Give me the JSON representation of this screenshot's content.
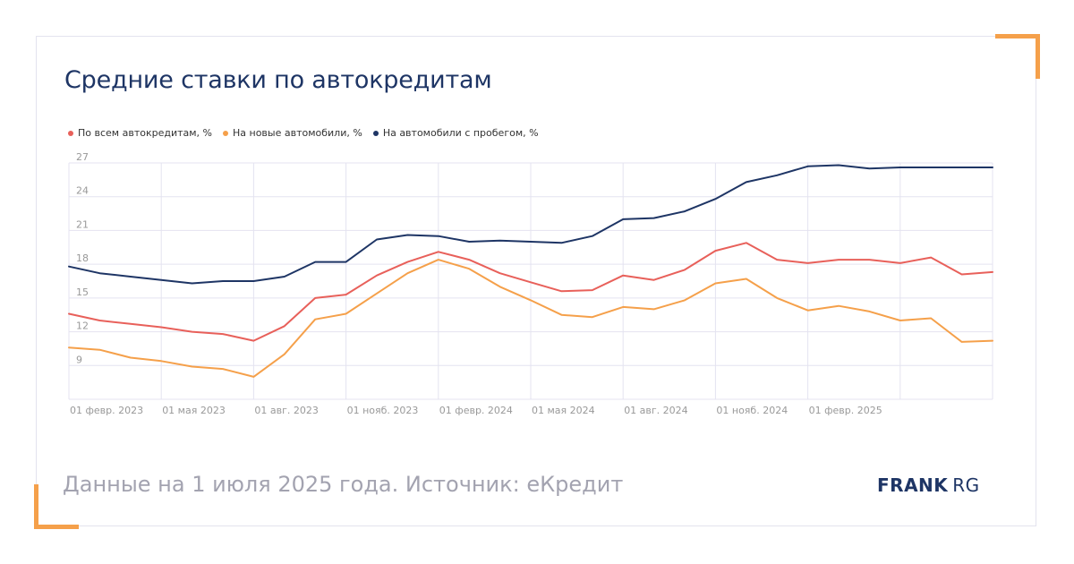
{
  "header": {
    "title": "Средние ставки по автокредитам"
  },
  "footer": {
    "note": "Данные на 1 июля 2025 года. Источник: еКредит",
    "logo_main": "FRANK",
    "logo_rg": "RG"
  },
  "colors": {
    "accent": "#f5a04a",
    "title": "#1e3565",
    "grid": "#e4e3f0",
    "tick": "#999999"
  },
  "chart_data": {
    "type": "line",
    "title": "Средние ставки по автокредитам",
    "ylim": [
      6,
      27
    ],
    "yticks": [
      9,
      12,
      15,
      18,
      21,
      24,
      27
    ],
    "grid": true,
    "legend_position": "top-left",
    "x_tick_labels": [
      "01 февр. 2023",
      "01 мая 2023",
      "01 авг. 2023",
      "01 нояб. 2023",
      "01 февр. 2024",
      "01 мая 2024",
      "01 авг. 2024",
      "01 нояб. 2024",
      "01 февр. 2025"
    ],
    "x": [
      "2023-01",
      "2023-02",
      "2023-03",
      "2023-04",
      "2023-05",
      "2023-06",
      "2023-07",
      "2023-08",
      "2023-09",
      "2023-10",
      "2023-11",
      "2023-12",
      "2024-01",
      "2024-02",
      "2024-03",
      "2024-04",
      "2024-05",
      "2024-06",
      "2024-07",
      "2024-08",
      "2024-09",
      "2024-10",
      "2024-11",
      "2024-12",
      "2025-01",
      "2025-02",
      "2025-03",
      "2025-04",
      "2025-05",
      "2025-06",
      "2025-07"
    ],
    "series": [
      {
        "name": "По всем автокредитам, %",
        "color": "#e8605a",
        "values": [
          13.6,
          13.0,
          12.7,
          12.4,
          12.0,
          11.8,
          11.2,
          12.5,
          15.0,
          15.3,
          17.0,
          18.2,
          19.1,
          18.4,
          17.2,
          16.4,
          15.6,
          15.7,
          17.0,
          16.6,
          17.5,
          19.2,
          19.9,
          18.4,
          18.1,
          18.4,
          18.4,
          18.1,
          18.6,
          17.1,
          17.3
        ]
      },
      {
        "name": "На новые автомобили, %",
        "color": "#f5a04a",
        "values": [
          10.6,
          10.4,
          9.7,
          9.4,
          8.9,
          8.7,
          8.0,
          10.0,
          13.1,
          13.6,
          15.4,
          17.2,
          18.4,
          17.6,
          16.0,
          14.8,
          13.5,
          13.3,
          14.2,
          14.0,
          14.8,
          16.3,
          16.7,
          15.0,
          13.9,
          14.3,
          13.8,
          13.0,
          13.2,
          11.1,
          11.2
        ]
      },
      {
        "name": "На автомобили с пробегом, %",
        "color": "#1e3565",
        "values": [
          17.8,
          17.2,
          16.9,
          16.6,
          16.3,
          16.5,
          16.5,
          16.9,
          18.2,
          18.2,
          20.2,
          20.6,
          20.5,
          20.0,
          20.1,
          20.0,
          19.9,
          20.5,
          22.0,
          22.1,
          22.7,
          23.8,
          25.3,
          25.9,
          26.7,
          26.8,
          26.5,
          26.6,
          26.6,
          26.6,
          26.6
        ]
      }
    ]
  }
}
